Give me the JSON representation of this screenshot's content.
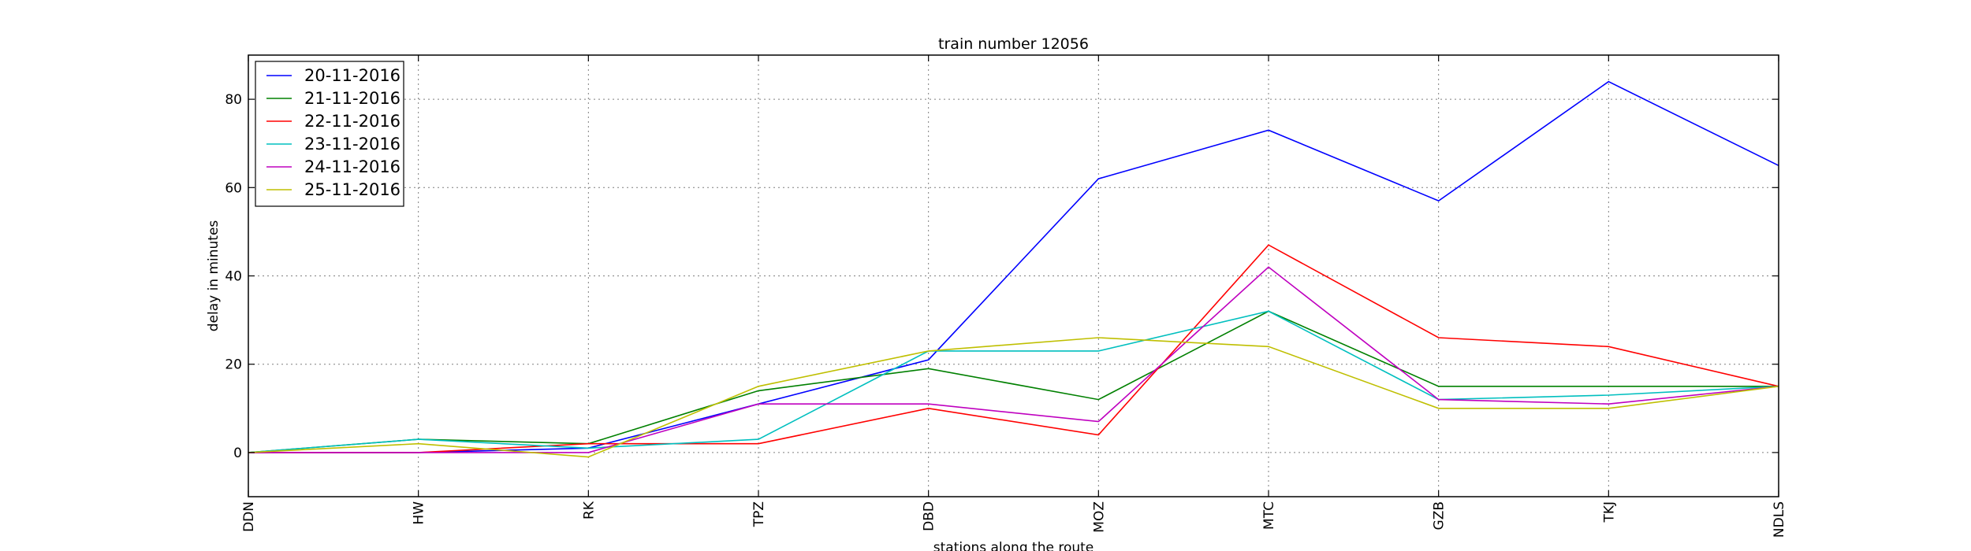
{
  "chart_data": {
    "type": "line",
    "title": "train number 12056",
    "xlabel": "stations along the route",
    "ylabel": "delay in minutes",
    "categories": [
      "DDN",
      "HW",
      "RK",
      "TPZ",
      "DBD",
      "MOZ",
      "MTC",
      "GZB",
      "TKJ",
      "NDLS"
    ],
    "ylim": [
      -10,
      90
    ],
    "yticks": [
      0,
      20,
      40,
      60,
      80
    ],
    "grid": true,
    "legend_position": "top-left",
    "series": [
      {
        "name": "20-11-2016",
        "color": "#0000ff",
        "values": [
          0,
          0,
          1,
          11,
          21,
          62,
          73,
          57,
          84,
          65
        ]
      },
      {
        "name": "21-11-2016",
        "color": "#008000",
        "values": [
          0,
          3,
          2,
          14,
          19,
          12,
          32,
          15,
          15,
          15
        ]
      },
      {
        "name": "22-11-2016",
        "color": "#ff0000",
        "values": [
          0,
          0,
          2,
          2,
          10,
          4,
          47,
          26,
          24,
          15
        ]
      },
      {
        "name": "23-11-2016",
        "color": "#00bfbf",
        "values": [
          0,
          3,
          1,
          3,
          23,
          23,
          32,
          12,
          13,
          15
        ]
      },
      {
        "name": "24-11-2016",
        "color": "#bf00bf",
        "values": [
          0,
          0,
          0,
          11,
          11,
          7,
          42,
          12,
          11,
          15
        ]
      },
      {
        "name": "25-11-2016",
        "color": "#bfbf00",
        "values": [
          0,
          2,
          -1,
          15,
          23,
          26,
          24,
          10,
          10,
          15
        ]
      }
    ]
  }
}
